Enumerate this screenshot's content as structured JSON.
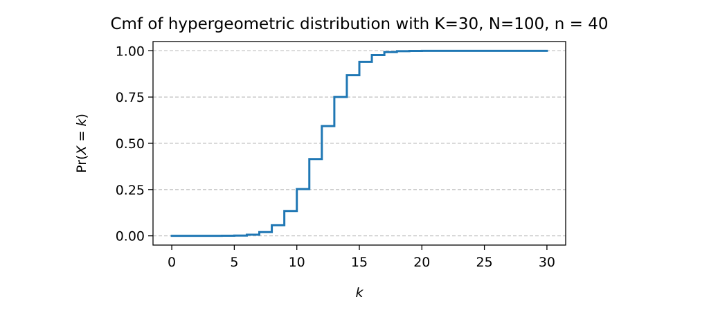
{
  "chart_data": {
    "type": "line",
    "drawstyle": "steps-post",
    "title": "Cmf of hypergeometric distribution with K=30, N=100, n = 40",
    "xlabel": "k",
    "ylabel_parts": [
      "Pr(",
      "X",
      " = ",
      "k",
      ")"
    ],
    "xlim": [
      -1.5,
      31.5
    ],
    "ylim": [
      -0.05,
      1.05
    ],
    "xticks": [
      0,
      5,
      10,
      15,
      20,
      25,
      30
    ],
    "xtick_labels": [
      "0",
      "5",
      "10",
      "15",
      "20",
      "25",
      "30"
    ],
    "yticks": [
      0.0,
      0.25,
      0.5,
      0.75,
      1.0
    ],
    "ytick_labels": [
      "0.00",
      "0.25",
      "0.50",
      "0.75",
      "1.00"
    ],
    "grid": {
      "axis": "y",
      "style": "dashed"
    },
    "series": [
      {
        "color": "#1f77b4",
        "x": [
          0,
          1,
          2,
          3,
          4,
          5,
          6,
          7,
          8,
          9,
          10,
          11,
          12,
          13,
          14,
          15,
          16,
          17,
          18,
          19,
          20,
          21,
          22,
          23,
          24,
          25,
          26,
          27,
          28,
          29,
          30
        ],
        "values": [
          0.0,
          0.0,
          0.0,
          0.0,
          0.0003,
          0.0015,
          0.0062,
          0.0203,
          0.0572,
          0.1341,
          0.2527,
          0.415,
          0.593,
          0.75,
          0.868,
          0.94,
          0.977,
          0.993,
          0.998,
          0.9997,
          1.0,
          1.0,
          1.0,
          1.0,
          1.0,
          1.0,
          1.0,
          1.0,
          1.0,
          1.0,
          1.0
        ]
      }
    ]
  }
}
